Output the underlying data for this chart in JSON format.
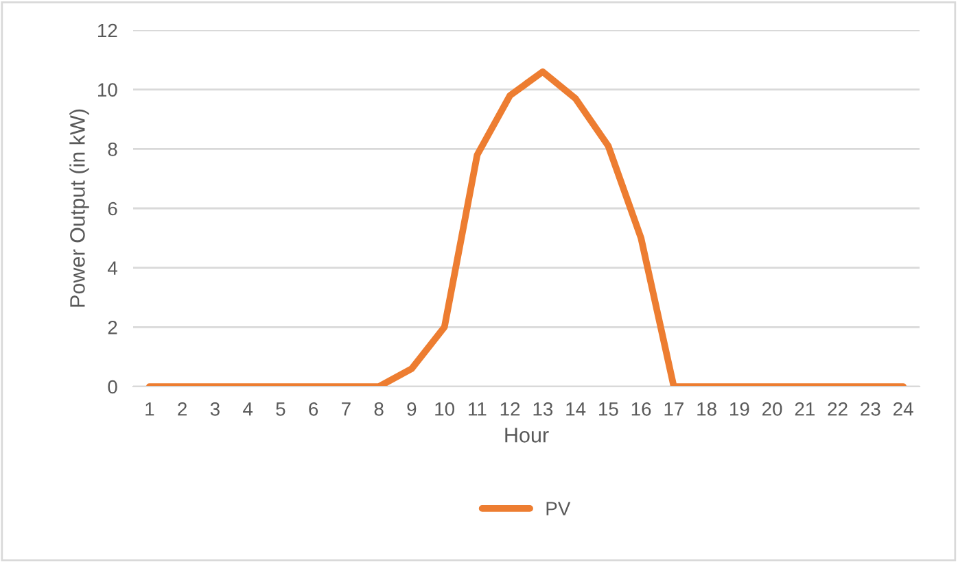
{
  "chart_data": {
    "type": "line",
    "xlabel": "Hour",
    "ylabel": "Power Output (in kW)",
    "categories": [
      "1",
      "2",
      "3",
      "4",
      "5",
      "6",
      "7",
      "8",
      "9",
      "10",
      "11",
      "12",
      "13",
      "14",
      "15",
      "16",
      "17",
      "18",
      "19",
      "20",
      "21",
      "22",
      "23",
      "24"
    ],
    "series": [
      {
        "name": "PV",
        "color": "#ed7d31",
        "values": [
          0,
          0,
          0,
          0,
          0,
          0,
          0,
          0,
          0.6,
          2.0,
          7.8,
          9.8,
          10.6,
          9.7,
          8.1,
          5.0,
          0,
          0,
          0,
          0,
          0,
          0,
          0,
          0
        ]
      }
    ],
    "ylim": [
      0,
      12
    ],
    "yticks": [
      0,
      2,
      4,
      6,
      8,
      10,
      12
    ],
    "grid": "y",
    "legend": "bottom",
    "marker": "none",
    "line_style": "solid"
  }
}
